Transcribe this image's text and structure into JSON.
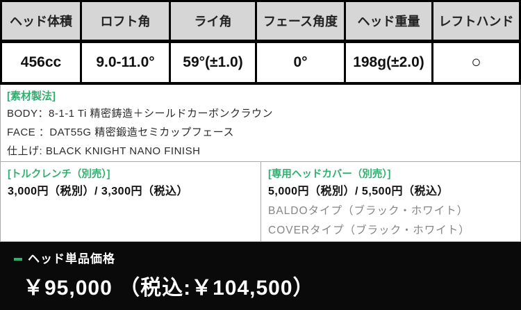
{
  "spec_table": {
    "columns": [
      {
        "header": "ヘッド体積",
        "value": "456cc"
      },
      {
        "header": "ロフト角",
        "value": "9.0-11.0°"
      },
      {
        "header": "ライ角",
        "value": "59°(±1.0)"
      },
      {
        "header": "フェース角度",
        "value": "0°"
      },
      {
        "header": "ヘッド重量",
        "value": "198g(±2.0)"
      },
      {
        "header": "レフトハンド",
        "value": "○"
      }
    ]
  },
  "materials": {
    "title": "[素材製法]",
    "lines": [
      "BODY：8-1-1 Ti 精密鋳造＋シールドカーボンクラウン",
      "FACE ：DAT55G 精密鍛造セミカップフェース",
      "仕上げ: BLACK KNIGHT NANO FINISH"
    ]
  },
  "accessories": {
    "wrench": {
      "title": "[トルクレンチ（別売）]",
      "price": "3,000円（税別）/ 3,300円（税込）"
    },
    "headcover": {
      "title": "[専用ヘッドカバー（別売）]",
      "price": "5,000円（税別）/ 5,500円（税込）",
      "options": [
        "BALDOタイプ（ブラック・ホワイト）",
        "COVERタイプ（ブラック・ホワイト）"
      ]
    }
  },
  "price_bar": {
    "label": "ヘッド単品価格",
    "price": "￥95,000 （税込:￥104,500）"
  },
  "colors": {
    "accent_green": "#2fb06e",
    "header_bg": "#d6d6d6",
    "table_border": "#000000",
    "section_border": "#a9a9a9",
    "bar_bg": "#0a0a0a"
  }
}
